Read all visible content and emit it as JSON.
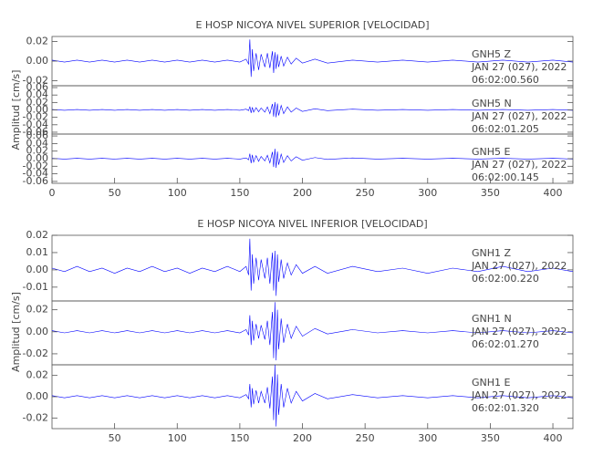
{
  "chart_data": [
    {
      "type": "line",
      "title": "E HOSP NICOYA NIVEL SUPERIOR [VELOCIDAD]",
      "station": "GNH5   Z",
      "date": "JAN 27 (027), 2022",
      "time": "06:02:00.560",
      "color": "#0000ff",
      "xlim": [
        0,
        416
      ],
      "ylim": [
        -0.025,
        0.025
      ],
      "yticks": [
        -0.02,
        {
          "value": 0,
          "label": "0.00"
        },
        0.02
      ],
      "x": [
        0,
        10,
        20,
        30,
        40,
        50,
        60,
        70,
        80,
        90,
        100,
        110,
        120,
        130,
        140,
        150,
        155,
        157,
        158,
        159,
        160,
        161,
        163,
        165,
        167,
        170,
        172,
        174,
        176,
        177,
        178,
        179,
        180,
        181,
        183,
        185,
        188,
        191,
        195,
        200,
        210,
        220,
        240,
        260,
        280,
        300,
        320,
        340,
        360,
        380,
        400,
        416
      ],
      "values": [
        0.001,
        -0.001,
        0.001,
        -0.001,
        0.001,
        -0.001,
        0.001,
        -0.001,
        0.001,
        -0.001,
        0.001,
        -0.001,
        0.001,
        -0.001,
        0.001,
        -0.001,
        0.002,
        -0.003,
        0.022,
        -0.016,
        0.012,
        -0.01,
        0.008,
        -0.009,
        0.007,
        -0.006,
        0.008,
        -0.007,
        0.01,
        -0.012,
        0.009,
        -0.008,
        0.007,
        -0.006,
        0.005,
        -0.005,
        0.004,
        -0.003,
        0.003,
        -0.002,
        0.002,
        -0.002,
        0.001,
        -0.001,
        0.001,
        -0.001,
        0.001,
        -0.001,
        0.001,
        -0.001,
        0.001,
        -0.001
      ]
    },
    {
      "type": "line",
      "ylabel": "Amplitud [cm/s]",
      "station": "GNH5   N",
      "date": "JAN 27 (027), 2022",
      "time": "06:02:01.205",
      "color": "#0000ff",
      "xlim": [
        0,
        416
      ],
      "ylim": [
        -0.065,
        0.065
      ],
      "yticks": [
        -0.06,
        -0.04,
        -0.02,
        {
          "value": 0,
          "label": "0.00"
        },
        0.02,
        0.04,
        0.06
      ],
      "x": [
        0,
        10,
        20,
        30,
        40,
        50,
        60,
        70,
        80,
        90,
        100,
        110,
        120,
        130,
        140,
        150,
        155,
        157,
        158,
        159,
        160,
        161,
        163,
        165,
        167,
        170,
        172,
        174,
        176,
        177,
        178,
        179,
        180,
        181,
        183,
        185,
        188,
        191,
        195,
        200,
        210,
        220,
        240,
        260,
        280,
        300,
        320,
        340,
        360,
        380,
        400,
        416
      ],
      "values": [
        0.001,
        -0.001,
        0.001,
        -0.001,
        0.001,
        -0.001,
        0.001,
        -0.001,
        0.001,
        -0.001,
        0.001,
        -0.001,
        0.001,
        -0.001,
        0.001,
        -0.001,
        0.002,
        -0.002,
        0.009,
        -0.008,
        0.007,
        -0.006,
        0.006,
        -0.005,
        0.005,
        -0.006,
        0.008,
        -0.01,
        0.016,
        -0.018,
        0.021,
        -0.02,
        0.017,
        -0.015,
        0.012,
        -0.01,
        0.008,
        -0.006,
        0.005,
        -0.004,
        0.003,
        -0.002,
        0.002,
        -0.001,
        0.001,
        -0.001,
        0.001,
        -0.001,
        0.001,
        -0.001,
        0.001,
        -0.001
      ]
    },
    {
      "type": "line",
      "station": "GNH5   E",
      "date": "JAN 27 (027), 2022",
      "time": "06:02:00.145",
      "color": "#0000ff",
      "xlim": [
        0,
        416
      ],
      "ylim": [
        -0.065,
        0.065
      ],
      "yticks": [
        -0.06,
        -0.04,
        -0.02,
        {
          "value": 0,
          "label": "0.00"
        },
        0.02,
        0.04,
        0.06
      ],
      "xticks": [
        0,
        50,
        100,
        150,
        200,
        250,
        300,
        350,
        400
      ],
      "x": [
        0,
        10,
        20,
        30,
        40,
        50,
        60,
        70,
        80,
        90,
        100,
        110,
        120,
        130,
        140,
        150,
        155,
        157,
        158,
        159,
        160,
        161,
        163,
        165,
        167,
        170,
        172,
        174,
        176,
        177,
        178,
        179,
        180,
        181,
        183,
        185,
        188,
        191,
        195,
        200,
        210,
        220,
        240,
        260,
        280,
        300,
        320,
        340,
        360,
        380,
        400,
        416
      ],
      "values": [
        0.001,
        -0.001,
        0.001,
        -0.001,
        0.001,
        -0.001,
        0.001,
        -0.001,
        0.001,
        -0.001,
        0.001,
        -0.001,
        0.001,
        -0.001,
        0.001,
        -0.001,
        0.002,
        -0.003,
        0.013,
        -0.012,
        0.01,
        -0.009,
        0.008,
        -0.007,
        0.006,
        -0.006,
        0.009,
        -0.011,
        0.018,
        -0.022,
        0.026,
        -0.024,
        0.019,
        -0.016,
        0.012,
        -0.01,
        0.008,
        -0.006,
        0.005,
        -0.004,
        0.003,
        -0.002,
        0.002,
        -0.001,
        0.001,
        -0.001,
        0.001,
        -0.001,
        0.001,
        -0.001,
        0.001,
        -0.001
      ]
    },
    {
      "type": "line",
      "title": "E HOSP NICOYA NIVEL INFERIOR [VELOCIDAD]",
      "station": "GNH1   Z",
      "date": "JAN 27 (027), 2022",
      "time": "06:02:00.220",
      "color": "#0000ff",
      "xlim": [
        0,
        416
      ],
      "ylim": [
        -0.018,
        0.02
      ],
      "yticks": [
        -0.01,
        {
          "value": 0,
          "label": "0.00"
        },
        0.01,
        0.02
      ],
      "x": [
        0,
        10,
        20,
        30,
        40,
        50,
        60,
        70,
        80,
        90,
        100,
        110,
        120,
        130,
        140,
        150,
        155,
        157,
        158,
        159,
        160,
        161,
        163,
        165,
        167,
        170,
        172,
        174,
        176,
        177,
        178,
        179,
        180,
        181,
        183,
        185,
        188,
        191,
        195,
        200,
        210,
        220,
        240,
        260,
        280,
        300,
        320,
        340,
        360,
        380,
        400,
        416
      ],
      "values": [
        0.001,
        -0.001,
        0.002,
        -0.001,
        0.001,
        -0.002,
        0.001,
        -0.001,
        0.002,
        -0.001,
        0.001,
        -0.002,
        0.001,
        -0.001,
        0.002,
        -0.001,
        0.002,
        -0.003,
        0.018,
        -0.012,
        0.009,
        -0.008,
        0.007,
        -0.006,
        0.006,
        -0.005,
        0.007,
        -0.008,
        0.01,
        -0.012,
        0.011,
        -0.015,
        0.009,
        -0.007,
        0.006,
        -0.005,
        0.004,
        -0.003,
        0.003,
        -0.002,
        0.002,
        -0.002,
        0.002,
        -0.001,
        0.001,
        -0.002,
        0.001,
        -0.001,
        0.002,
        -0.001,
        0.001,
        -0.001
      ]
    },
    {
      "type": "line",
      "ylabel": "Amplitud [cm/s]",
      "station": "GNH1   N",
      "date": "JAN 27 (027), 2022",
      "time": "06:02:01.270",
      "color": "#0000ff",
      "xlim": [
        0,
        416
      ],
      "ylim": [
        -0.03,
        0.028
      ],
      "yticks": [
        -0.02,
        {
          "value": 0,
          "label": "0.00"
        },
        0.02
      ],
      "x": [
        0,
        10,
        20,
        30,
        40,
        50,
        60,
        70,
        80,
        90,
        100,
        110,
        120,
        130,
        140,
        150,
        155,
        157,
        158,
        159,
        160,
        161,
        163,
        165,
        167,
        170,
        172,
        174,
        176,
        177,
        178,
        179,
        180,
        181,
        183,
        185,
        188,
        191,
        195,
        200,
        210,
        220,
        240,
        260,
        280,
        300,
        320,
        340,
        360,
        380,
        400,
        416
      ],
      "values": [
        0.001,
        -0.001,
        0.001,
        -0.001,
        0.001,
        -0.001,
        0.001,
        -0.001,
        0.001,
        -0.001,
        0.001,
        -0.001,
        0.001,
        -0.001,
        0.001,
        -0.001,
        0.002,
        -0.003,
        0.015,
        -0.012,
        0.01,
        -0.008,
        0.007,
        -0.006,
        0.006,
        -0.007,
        0.01,
        -0.012,
        0.018,
        -0.024,
        0.027,
        -0.026,
        0.02,
        -0.016,
        0.012,
        -0.01,
        0.007,
        -0.006,
        0.005,
        -0.004,
        0.003,
        -0.002,
        0.002,
        -0.001,
        0.001,
        -0.001,
        0.001,
        -0.001,
        0.001,
        -0.001,
        0.001,
        -0.001
      ]
    },
    {
      "type": "line",
      "station": "GNH1   E",
      "date": "JAN 27 (027), 2022",
      "time": "06:02:01.320",
      "color": "#0000ff",
      "xlim": [
        0,
        416
      ],
      "ylim": [
        -0.03,
        0.03
      ],
      "yticks": [
        -0.02,
        {
          "value": 0,
          "label": "0.00"
        },
        0.02
      ],
      "xticks": [
        50,
        100,
        150,
        200,
        250,
        300,
        350,
        400
      ],
      "x": [
        0,
        10,
        20,
        30,
        40,
        50,
        60,
        70,
        80,
        90,
        100,
        110,
        120,
        130,
        140,
        150,
        155,
        157,
        158,
        159,
        160,
        161,
        163,
        165,
        167,
        170,
        172,
        174,
        176,
        177,
        178,
        179,
        180,
        181,
        183,
        185,
        188,
        191,
        195,
        200,
        210,
        220,
        240,
        260,
        280,
        300,
        320,
        340,
        360,
        380,
        400,
        416
      ],
      "values": [
        0.001,
        -0.001,
        0.001,
        -0.001,
        0.001,
        -0.001,
        0.001,
        -0.001,
        0.001,
        -0.001,
        0.001,
        -0.001,
        0.001,
        -0.001,
        0.001,
        -0.001,
        0.002,
        -0.002,
        0.012,
        -0.01,
        0.008,
        -0.007,
        0.006,
        -0.006,
        0.005,
        -0.006,
        0.009,
        -0.011,
        0.019,
        -0.022,
        0.03,
        -0.028,
        0.021,
        -0.017,
        0.012,
        -0.01,
        0.008,
        -0.006,
        0.005,
        -0.004,
        0.003,
        -0.002,
        0.002,
        -0.001,
        0.001,
        -0.001,
        0.001,
        -0.001,
        0.001,
        -0.001,
        0.001,
        -0.001
      ]
    }
  ]
}
